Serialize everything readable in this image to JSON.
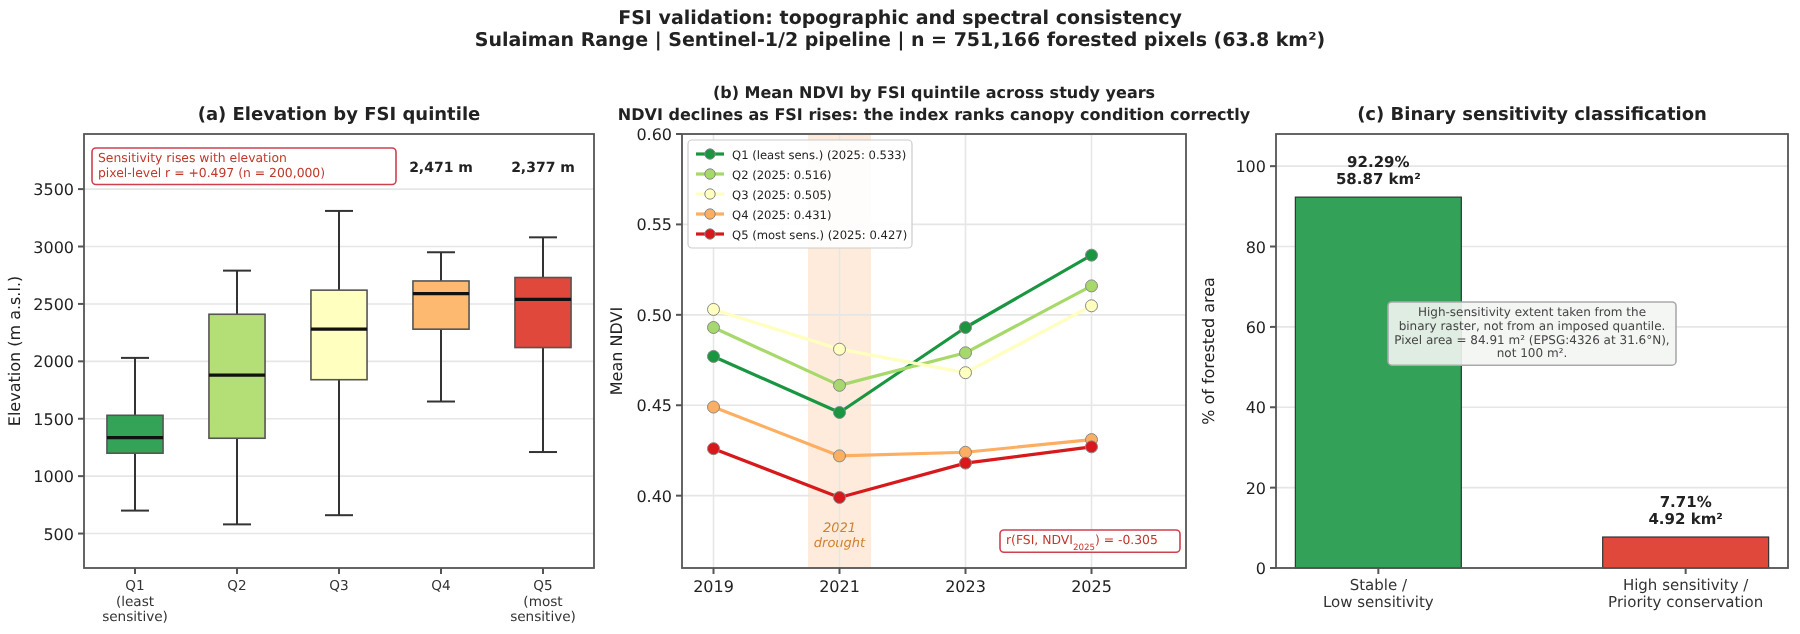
{
  "chart_data": [
    {
      "type": "other",
      "title": "FSI validation: topographic and spectral consistency",
      "subtitle": "Sulaiman Range  |  Sentinel-1/2 pipeline  |  n = 751,166 forested pixels (63.8 km²)"
    },
    {
      "type": "box",
      "title": "(a) Elevation by FSI quintile",
      "ylabel": "Elevation (m a.s.l.)",
      "categories": [
        "Q1\n(least\nsensitive)",
        "Q2",
        "Q3",
        "Q4",
        "Q5\n(most\nsensitive)"
      ],
      "colors": [
        "#33a457",
        "#b3df76",
        "#ffffc0",
        "#fdb96f",
        "#e0483b"
      ],
      "boxes": [
        {
          "low": 700,
          "q1": 1200,
          "median": 1335,
          "q3": 1530,
          "high": 2030
        },
        {
          "low": 580,
          "q1": 1330,
          "median": 1880,
          "q3": 2410,
          "high": 2790
        },
        {
          "low": 660,
          "q1": 1840,
          "median": 2280,
          "q3": 2620,
          "high": 3310
        },
        {
          "low": 1650,
          "q1": 2280,
          "median": 2590,
          "q3": 2700,
          "high": 2950
        },
        {
          "low": 1210,
          "q1": 2120,
          "median": 2540,
          "q3": 2730,
          "high": 3080
        }
      ],
      "ylim": [
        200,
        3980
      ],
      "yticks": [
        500,
        1000,
        1500,
        2000,
        2500,
        3000,
        3500
      ],
      "grid": "y",
      "annotations": [
        "Sensitivity rises with elevation\npixel-level r = +0.497  (n = 200,000)",
        "2,471 m",
        "2,377 m"
      ]
    },
    {
      "type": "line",
      "title": "(b) Mean NDVI by FSI quintile across study years",
      "subtitle": "NDVI declines as FSI rises: the index ranks canopy condition correctly",
      "ylabel": "Mean NDVI",
      "x": [
        2019,
        2021,
        2023,
        2025
      ],
      "series": [
        {
          "name": "Q1 (least sens.)  (2025: 0.533)",
          "color": "#1a9641",
          "values": [
            0.477,
            0.446,
            0.493,
            0.533
          ]
        },
        {
          "name": "Q2  (2025: 0.516)",
          "color": "#a6d96a",
          "values": [
            0.493,
            0.461,
            0.479,
            0.516
          ]
        },
        {
          "name": "Q3  (2025: 0.505)",
          "color": "#ffffbf",
          "values": [
            0.503,
            0.481,
            0.468,
            0.505
          ]
        },
        {
          "name": "Q4  (2025: 0.431)",
          "color": "#fdae61",
          "values": [
            0.449,
            0.422,
            0.424,
            0.431
          ]
        },
        {
          "name": "Q5 (most sens.)  (2025: 0.427)",
          "color": "#d7191c",
          "values": [
            0.426,
            0.399,
            0.418,
            0.427
          ]
        }
      ],
      "xlim": [
        2018.5,
        2026.5
      ],
      "xticks": [
        2019,
        2021,
        2023,
        2025
      ],
      "ylim": [
        0.36,
        0.6
      ],
      "yticks": [
        {
          "value": 0.4,
          "label": "0.40"
        },
        0.45,
        {
          "value": 0.5,
          "label": "0.50"
        },
        0.55,
        {
          "value": 0.6,
          "label": "0.60"
        }
      ],
      "grid": true,
      "marker": "circle",
      "legend": "top left",
      "bands": [
        {
          "axis": "x",
          "from": 2020.5,
          "to": 2021.5,
          "label": "2021 drought",
          "color": "#fde3cc"
        }
      ],
      "annotations": [
        "r(FSI, NDVI$_{2025}$) = -0.305"
      ]
    },
    {
      "type": "bar",
      "title": "(c) Binary sensitivity classification",
      "ylabel": "% of forested area",
      "categories": [
        "Stable /\nLow sensitivity",
        "High sensitivity /\nPriority conservation"
      ],
      "values": [
        92.29,
        7.71
      ],
      "colors": [
        "#33a157",
        "#e0483b"
      ],
      "value_labels": [
        "92.29%\n58.87 km²",
        "7.71%\n4.92 km²"
      ],
      "ylim": [
        0,
        108
      ],
      "yticks": [
        0,
        20,
        40,
        60,
        80,
        100
      ],
      "grid": "y",
      "annotations": [
        "High-sensitivity extent taken from the\nbinary raster, not from an imposed quantile.\nPixel area = 84.91 m² (EPSG:4326 at 31.6°N),\nnot 100 m²."
      ]
    }
  ]
}
